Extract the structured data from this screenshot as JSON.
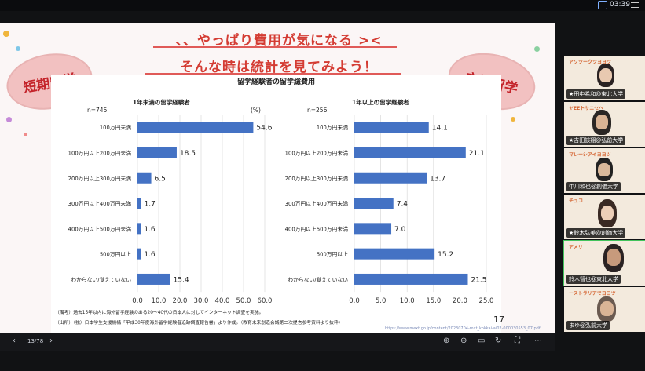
{
  "status_bar": {
    "time": "03:39"
  },
  "slide": {
    "headline1": "、、やっぱり費用が気になる >< ",
    "headline2": "そんな時は統計を見てみよう！",
    "badge_left": "短期留学",
    "badge_right": "交換留学",
    "chart_title": "留学経験者の留学総費用",
    "page_number": "17",
    "note1": "（備考）過去15年以内に海外留学経験のある20〜40代の日本人に対してインターネット調査を実施。",
    "note2": "（出所）（独）日本学生支援機構「平成30年度海外留学経験者追跡調査報告書」より作成。（教育未来創造会議第二次提言参考資料より抜粋）",
    "url": "https://www.mext.go.jp/content/20230704-mxt_kokkai-ai02-000030553_07.pdf"
  },
  "chart_data": [
    {
      "type": "bar",
      "orientation": "horizontal",
      "title": "1年未満の留学経験者",
      "n_label": "n=745",
      "unit": "(%)",
      "categories": [
        "100万円未満",
        "100万円以上200万円未満",
        "200万円以上300万円未満",
        "300万円以上400万円未満",
        "400万円以上500万円未満",
        "500万円以上",
        "わからない/覚えていない"
      ],
      "values": [
        54.6,
        18.5,
        6.5,
        1.7,
        1.6,
        1.6,
        15.4
      ],
      "xlim": [
        0,
        60
      ],
      "ticks": [
        0,
        10,
        20,
        30,
        40,
        50,
        60
      ],
      "tick_labels": [
        "0.0",
        "10.0",
        "20.0",
        "30.0",
        "40.0",
        "50.0",
        "60.0"
      ],
      "bar_color": "#4472c4",
      "grid": true
    },
    {
      "type": "bar",
      "orientation": "horizontal",
      "title": "1年以上の留学経験者",
      "n_label": "n=256",
      "categories": [
        "100万円未満",
        "100万円以上200万円未満",
        "200万円以上300万円未満",
        "300万円以上400万円未満",
        "400万円以上500万円未満",
        "500万円以上",
        "わからない/覚えていない"
      ],
      "values": [
        14.1,
        21.1,
        13.7,
        7.4,
        7.0,
        15.2,
        21.5
      ],
      "xlim": [
        0,
        25
      ],
      "ticks": [
        0,
        5,
        10,
        15,
        20,
        25
      ],
      "tick_labels": [
        "0.0",
        "5.0",
        "10.0",
        "15.0",
        "20.0",
        "25.0"
      ],
      "bar_color": "#4472c4",
      "grid": true
    }
  ],
  "bottom_bar": {
    "page_indicator": "13/78",
    "prev": "‹",
    "next": "›"
  },
  "participants": [
    {
      "name": "★田中希和@東北大学",
      "header": "アソツークツヨヨツ"
    },
    {
      "name": "★吉田該翔@弘前大学",
      "header": "ヤEEトサニセヘ"
    },
    {
      "name": "中川和也@創価大学",
      "header": "マレーシアイヨヨツ"
    },
    {
      "name": "★鈴木弘美@創価大学",
      "header": "チュコ"
    },
    {
      "name": "鈴木智也@東北大学",
      "header": "アメリ"
    },
    {
      "name": "まゆ@弘前大学",
      "header": "ーストラリアでヨヨツ"
    }
  ]
}
